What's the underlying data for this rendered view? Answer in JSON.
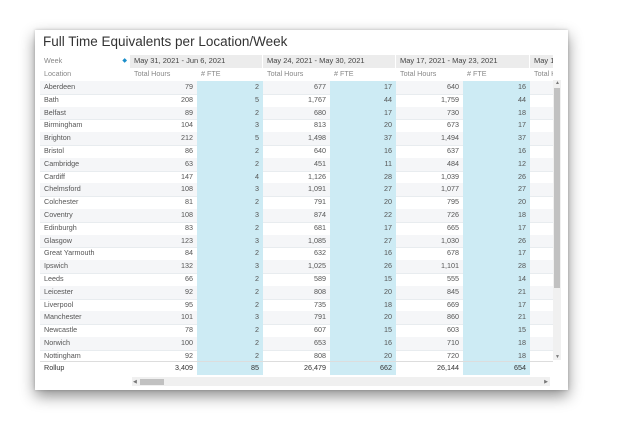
{
  "title": "Full Time Equivalents per Location/Week",
  "header": {
    "week_label": "Week",
    "location_label": "Location",
    "weeks": [
      "May 31, 2021 - Jun 6, 2021",
      "May 24, 2021 - May 30, 2021",
      "May 17, 2021 - May 23, 2021",
      "May 1"
    ],
    "total_hours": "Total Hours",
    "fte": "# FTE",
    "partial_sub": "Total H"
  },
  "rows": [
    [
      "Aberdeen",
      "79",
      "2",
      "677",
      "17",
      "640",
      "16"
    ],
    [
      "Bath",
      "208",
      "5",
      "1,767",
      "44",
      "1,759",
      "44"
    ],
    [
      "Belfast",
      "89",
      "2",
      "680",
      "17",
      "730",
      "18"
    ],
    [
      "Birmingham",
      "104",
      "3",
      "813",
      "20",
      "673",
      "17"
    ],
    [
      "Brighton",
      "212",
      "5",
      "1,498",
      "37",
      "1,494",
      "37"
    ],
    [
      "Bristol",
      "86",
      "2",
      "640",
      "16",
      "637",
      "16"
    ],
    [
      "Cambridge",
      "63",
      "2",
      "451",
      "11",
      "484",
      "12"
    ],
    [
      "Cardiff",
      "147",
      "4",
      "1,126",
      "28",
      "1,039",
      "26"
    ],
    [
      "Chelmsford",
      "108",
      "3",
      "1,091",
      "27",
      "1,077",
      "27"
    ],
    [
      "Colchester",
      "81",
      "2",
      "791",
      "20",
      "795",
      "20"
    ],
    [
      "Coventry",
      "108",
      "3",
      "874",
      "22",
      "726",
      "18"
    ],
    [
      "Edinburgh",
      "83",
      "2",
      "681",
      "17",
      "665",
      "17"
    ],
    [
      "Glasgow",
      "123",
      "3",
      "1,085",
      "27",
      "1,030",
      "26"
    ],
    [
      "Great Yarmouth",
      "84",
      "2",
      "632",
      "16",
      "678",
      "17"
    ],
    [
      "Ipswich",
      "132",
      "3",
      "1,025",
      "26",
      "1,101",
      "28"
    ],
    [
      "Leeds",
      "66",
      "2",
      "589",
      "15",
      "555",
      "14"
    ],
    [
      "Leicester",
      "92",
      "2",
      "808",
      "20",
      "845",
      "21"
    ],
    [
      "Liverpool",
      "95",
      "2",
      "735",
      "18",
      "669",
      "17"
    ],
    [
      "Manchester",
      "101",
      "3",
      "791",
      "20",
      "860",
      "21"
    ],
    [
      "Newcastle",
      "78",
      "2",
      "607",
      "15",
      "603",
      "15"
    ],
    [
      "Norwich",
      "100",
      "2",
      "653",
      "16",
      "710",
      "18"
    ],
    [
      "Nottingham",
      "92",
      "2",
      "808",
      "20",
      "720",
      "18"
    ]
  ],
  "rollup": [
    "Rollup",
    "3,409",
    "85",
    "26,479",
    "662",
    "26,144",
    "654"
  ]
}
